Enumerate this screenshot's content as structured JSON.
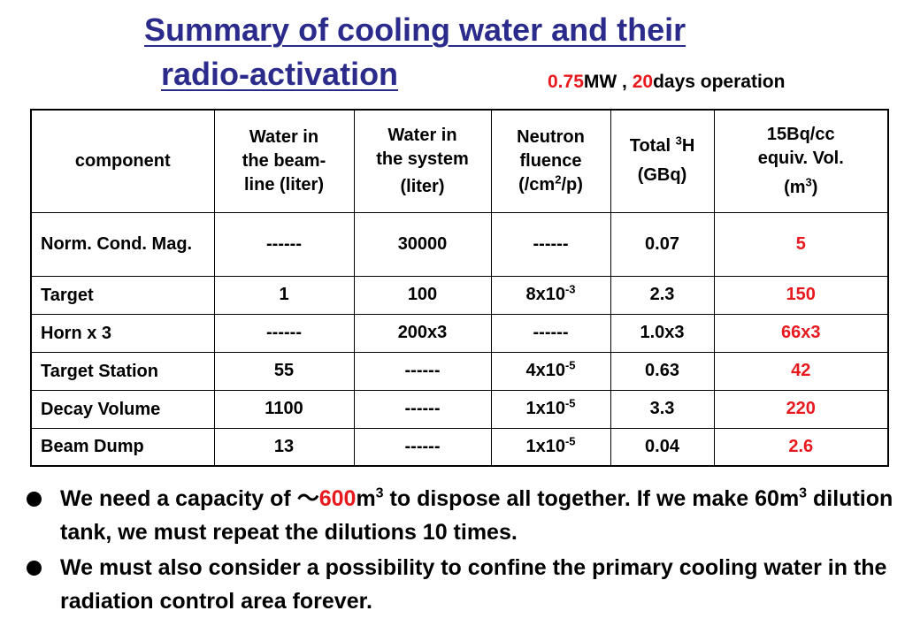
{
  "title": {
    "line1": "Summary of cooling water and their",
    "line2": "radio-activation"
  },
  "subtitle": {
    "power_value": "0.75",
    "power_unit": "MW , ",
    "days_value": "20",
    "days_text": "days operation"
  },
  "table": {
    "headers": {
      "component": "component",
      "water_beamline": [
        "Water in",
        "the beam-",
        "line (liter)"
      ],
      "water_system": [
        "Water in",
        "the system",
        "(liter)"
      ],
      "neutron": [
        "Neutron",
        "fluence",
        "(/cm",
        "2",
        "/p)"
      ],
      "tritium": [
        "Total ",
        "3",
        "H",
        "(GBq)"
      ],
      "equiv_vol": [
        "15Bq/cc",
        "equiv. Vol.",
        "(m",
        "3",
        ")"
      ]
    },
    "rows": [
      {
        "component": "Norm. Cond. Mag.",
        "beamline": "------",
        "system": "30000",
        "fluence_base": "------",
        "fluence_exp": "",
        "tritium": "0.07",
        "volume": "5"
      },
      {
        "component": "Target",
        "beamline": "1",
        "system": "100",
        "fluence_base": "8x10",
        "fluence_exp": "-3",
        "tritium": "2.3",
        "volume": "150"
      },
      {
        "component": "Horn x 3",
        "beamline": "------",
        "system": "200x3",
        "fluence_base": "------",
        "fluence_exp": "",
        "tritium": "1.0x3",
        "volume": "66x3"
      },
      {
        "component": "Target Station",
        "beamline": "55",
        "system": "------",
        "fluence_base": "4x10",
        "fluence_exp": "-5",
        "tritium": "0.63",
        "volume": "42"
      },
      {
        "component": "Decay Volume",
        "beamline": "1100",
        "system": "------",
        "fluence_base": "1x10",
        "fluence_exp": "-5",
        "tritium": "3.3",
        "volume": "220"
      },
      {
        "component": "Beam Dump",
        "beamline": "13",
        "system": "------",
        "fluence_base": "1x10",
        "fluence_exp": "-5",
        "tritium": "0.04",
        "volume": "2.6"
      }
    ]
  },
  "bullets": {
    "b1": {
      "part1": "We need a capacity of ",
      "tilde": "～",
      "value": "600",
      "unit": "m",
      "unit_sup": "3",
      "part2": "  to dispose all together. If we make 60m",
      "part2_sup": "3",
      "part3": " dilution tank, we must repeat the dilutions 10 times."
    },
    "b2": {
      "text": "We must also consider a possibility to confine the primary cooling water in the radiation control area forever."
    }
  },
  "colors": {
    "title": "#2b2b8c",
    "highlight": "#e8191e",
    "text": "#000000"
  }
}
